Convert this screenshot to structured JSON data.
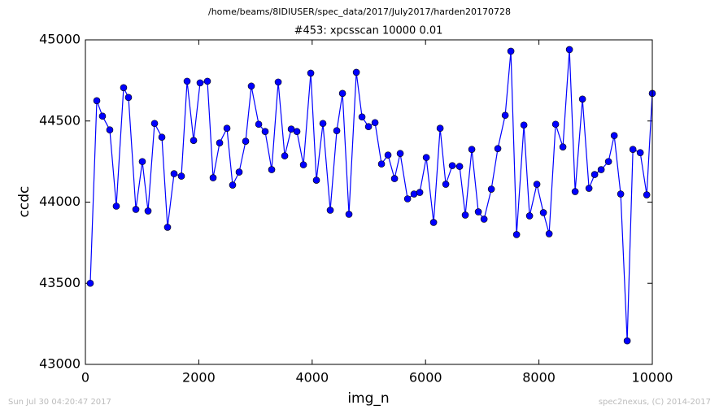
{
  "chart_data": {
    "type": "line",
    "suptitle": "/home/beams/8IDIUSER/spec_data/2017/July2017/harden20170728",
    "title": "#453: xpcsscan 10000 0.01",
    "xlabel": "img_n",
    "ylabel": "ccdc",
    "footer_left": "Sun Jul 30 04:20:47 2017",
    "footer_right": "spec2nexus, (C) 2014-2017",
    "xlim": [
      0,
      10000
    ],
    "xticks": [
      0,
      2000,
      4000,
      6000,
      8000,
      10000
    ],
    "ylim": [
      43000,
      45000
    ],
    "yticks": [
      43000,
      43500,
      44000,
      44500,
      45000
    ],
    "grid": false,
    "series": [
      {
        "color": "#0000ff",
        "x": [
          86,
          201,
          301,
          430,
          545,
          674,
          760,
          890,
          1004,
          1105,
          1220,
          1349,
          1449,
          1564,
          1693,
          1794,
          1909,
          2023,
          2152,
          2253,
          2368,
          2497,
          2597,
          2712,
          2827,
          2927,
          3057,
          3171,
          3286,
          3401,
          3516,
          3631,
          3731,
          3846,
          3975,
          4075,
          4190,
          4319,
          4434,
          4535,
          4649,
          4779,
          4879,
          4994,
          5109,
          5223,
          5338,
          5453,
          5553,
          5683,
          5797,
          5898,
          6013,
          6142,
          6257,
          6357,
          6472,
          6601,
          6701,
          6816,
          6931,
          7032,
          7161,
          7275,
          7405,
          7505,
          7606,
          7735,
          7835,
          7964,
          8079,
          8180,
          8294,
          8423,
          8538,
          8639,
          8768,
          8883,
          8983,
          9098,
          9227,
          9328,
          9442,
          9557,
          9658,
          9787,
          9902,
          10000
        ],
        "values": [
          43500,
          44625,
          44530,
          44445,
          43975,
          44705,
          44645,
          43955,
          44250,
          43945,
          44485,
          44400,
          43845,
          44175,
          44160,
          44745,
          44380,
          44735,
          44745,
          44150,
          44365,
          44455,
          44105,
          44185,
          44375,
          44715,
          44480,
          44435,
          44200,
          44740,
          44285,
          44450,
          44435,
          44230,
          44795,
          44135,
          44485,
          43950,
          44440,
          44670,
          43925,
          44800,
          44525,
          44465,
          44490,
          44235,
          44290,
          44145,
          44300,
          44020,
          44050,
          44060,
          44275,
          43875,
          44455,
          44110,
          44225,
          44220,
          43920,
          44325,
          43940,
          43895,
          44080,
          44330,
          44535,
          44930,
          43800,
          44475,
          43915,
          44110,
          43935,
          43805,
          44480,
          44340,
          44940,
          44065,
          44635,
          44085,
          44170,
          44200,
          44250,
          44410,
          44050,
          43145,
          44325,
          44305,
          44045,
          44670
        ]
      }
    ]
  }
}
